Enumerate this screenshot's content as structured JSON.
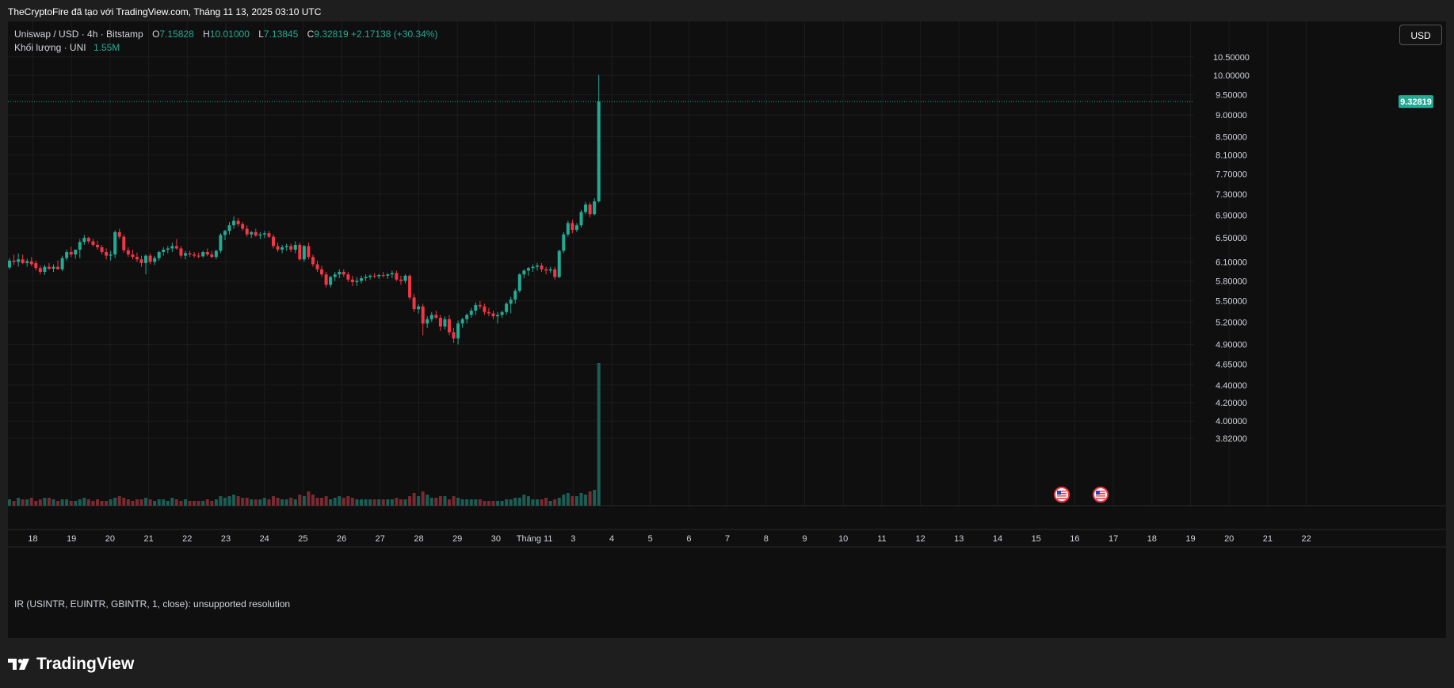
{
  "header": {
    "text": "TheCryptoFire đã tạo với TradingView.com, Tháng 11 13, 2025 03:10 UTC"
  },
  "legend": {
    "symbol": "Uniswap / USD · 4h · Bitstamp",
    "o_label": "O",
    "o_value": "7.15828",
    "h_label": "H",
    "h_value": "10.01000",
    "l_label": "L",
    "l_value": "7.13845",
    "c_label": "C",
    "c_value": "9.32819",
    "change": "+2.17138 (+30.34%)",
    "volume_label": "Khối lượng · UNI",
    "volume_value": "1.55M"
  },
  "currency_button": "USD",
  "indicator_note": "IR (USINTR, EUINTR, GBINTR, 1, close): unsupported resolution",
  "brand": "TradingView",
  "colors": {
    "up": "#22ab94",
    "down": "#f23645",
    "background": "#0f0f0f",
    "grid": "#1c1c1c",
    "text": "#d1d4dc"
  },
  "chart_data": {
    "type": "candlestick",
    "symbol": "Uniswap / USD",
    "interval": "4h",
    "exchange": "Bitstamp",
    "y_scale": "log",
    "y_ticks": [
      "10.50000",
      "10.00000",
      "9.50000",
      "9.00000",
      "8.50000",
      "8.10000",
      "7.70000",
      "7.30000",
      "6.90000",
      "6.50000",
      "6.10000",
      "5.80000",
      "5.50000",
      "5.20000",
      "4.90000",
      "4.65000",
      "4.40000",
      "4.20000",
      "4.00000",
      "3.82000"
    ],
    "x_ticks": [
      "18",
      "19",
      "20",
      "21",
      "22",
      "23",
      "24",
      "25",
      "26",
      "27",
      "28",
      "29",
      "30",
      "Tháng 11",
      "3",
      "4",
      "5",
      "6",
      "7",
      "8",
      "9",
      "10",
      "11",
      "12",
      "13",
      "14",
      "15",
      "16",
      "17",
      "18",
      "19",
      "20",
      "21",
      "22"
    ],
    "last_price": "9.32819",
    "event_icons": [
      "us-flag-icon",
      "us-flag-icon"
    ],
    "ohlc": [
      [
        6.01,
        6.16,
        5.98,
        6.12
      ],
      [
        6.12,
        6.22,
        6.05,
        6.1
      ],
      [
        6.1,
        6.24,
        6.02,
        6.14
      ],
      [
        6.14,
        6.22,
        6.06,
        6.08
      ],
      [
        6.08,
        6.15,
        6.02,
        6.11
      ],
      [
        6.11,
        6.18,
        6.03,
        6.06
      ],
      [
        6.08,
        6.12,
        5.96,
        6.0
      ],
      [
        6.0,
        6.04,
        5.9,
        5.94
      ],
      [
        5.94,
        6.05,
        5.89,
        6.02
      ],
      [
        6.02,
        6.08,
        5.97,
        5.99
      ],
      [
        5.99,
        6.06,
        5.94,
        6.02
      ],
      [
        6.02,
        6.12,
        5.98,
        5.98
      ],
      [
        5.98,
        6.2,
        5.95,
        6.16
      ],
      [
        6.16,
        6.3,
        6.12,
        6.26
      ],
      [
        6.26,
        6.35,
        6.18,
        6.22
      ],
      [
        6.22,
        6.3,
        6.15,
        6.3
      ],
      [
        6.3,
        6.48,
        6.16,
        6.43
      ],
      [
        6.43,
        6.55,
        6.38,
        6.5
      ],
      [
        6.5,
        6.52,
        6.4,
        6.44
      ],
      [
        6.44,
        6.48,
        6.35,
        6.38
      ],
      [
        6.38,
        6.45,
        6.3,
        6.34
      ],
      [
        6.34,
        6.38,
        6.22,
        6.26
      ],
      [
        6.26,
        6.32,
        6.14,
        6.2
      ],
      [
        6.2,
        6.28,
        6.12,
        6.22
      ],
      [
        6.22,
        6.63,
        6.16,
        6.6
      ],
      [
        6.6,
        6.66,
        6.48,
        6.52
      ],
      [
        6.52,
        6.56,
        6.25,
        6.29
      ],
      [
        6.29,
        6.34,
        6.18,
        6.22
      ],
      [
        6.22,
        6.3,
        6.14,
        6.18
      ],
      [
        6.18,
        6.25,
        6.1,
        6.14
      ],
      [
        6.14,
        6.2,
        6.02,
        6.08
      ],
      [
        6.08,
        6.22,
        5.9,
        6.2
      ],
      [
        6.2,
        6.24,
        6.06,
        6.1
      ],
      [
        6.1,
        6.2,
        6.05,
        6.16
      ],
      [
        6.16,
        6.28,
        6.12,
        6.26
      ],
      [
        6.26,
        6.34,
        6.2,
        6.3
      ],
      [
        6.3,
        6.36,
        6.24,
        6.32
      ],
      [
        6.32,
        6.42,
        6.26,
        6.36
      ],
      [
        6.36,
        6.48,
        6.3,
        6.32
      ],
      [
        6.32,
        6.36,
        6.16,
        6.2
      ],
      [
        6.2,
        6.28,
        6.14,
        6.24
      ],
      [
        6.24,
        6.28,
        6.18,
        6.22
      ],
      [
        6.22,
        6.26,
        6.17,
        6.2
      ],
      [
        6.2,
        6.25,
        6.16,
        6.19
      ],
      [
        6.19,
        6.28,
        6.17,
        6.26
      ],
      [
        6.26,
        6.32,
        6.19,
        6.22
      ],
      [
        6.22,
        6.28,
        6.16,
        6.18
      ],
      [
        6.18,
        6.3,
        6.14,
        6.28
      ],
      [
        6.28,
        6.58,
        6.24,
        6.55
      ],
      [
        6.55,
        6.64,
        6.46,
        6.62
      ],
      [
        6.62,
        6.78,
        6.56,
        6.72
      ],
      [
        6.72,
        6.88,
        6.66,
        6.8
      ],
      [
        6.8,
        6.85,
        6.7,
        6.74
      ],
      [
        6.74,
        6.78,
        6.62,
        6.66
      ],
      [
        6.66,
        6.72,
        6.52,
        6.56
      ],
      [
        6.56,
        6.62,
        6.5,
        6.6
      ],
      [
        6.6,
        6.66,
        6.52,
        6.54
      ],
      [
        6.54,
        6.6,
        6.48,
        6.56
      ],
      [
        6.56,
        6.62,
        6.5,
        6.58
      ],
      [
        6.58,
        6.62,
        6.5,
        6.52
      ],
      [
        6.52,
        6.56,
        6.32,
        6.36
      ],
      [
        6.36,
        6.42,
        6.26,
        6.3
      ],
      [
        6.3,
        6.38,
        6.24,
        6.34
      ],
      [
        6.34,
        6.4,
        6.28,
        6.36
      ],
      [
        6.36,
        6.4,
        6.26,
        6.3
      ],
      [
        6.3,
        6.44,
        6.24,
        6.38
      ],
      [
        6.38,
        6.42,
        6.12,
        6.14
      ],
      [
        6.14,
        6.38,
        6.1,
        6.36
      ],
      [
        6.36,
        6.42,
        6.14,
        6.18
      ],
      [
        6.18,
        6.22,
        6.02,
        6.06
      ],
      [
        6.06,
        6.12,
        5.94,
        5.98
      ],
      [
        5.98,
        6.04,
        5.86,
        5.9
      ],
      [
        5.9,
        5.94,
        5.7,
        5.74
      ],
      [
        5.74,
        5.88,
        5.7,
        5.86
      ],
      [
        5.86,
        5.94,
        5.8,
        5.9
      ],
      [
        5.9,
        5.98,
        5.84,
        5.94
      ],
      [
        5.94,
        5.98,
        5.86,
        5.9
      ],
      [
        5.9,
        5.94,
        5.78,
        5.82
      ],
      [
        5.82,
        5.88,
        5.72,
        5.78
      ],
      [
        5.78,
        5.86,
        5.72,
        5.8
      ],
      [
        5.8,
        5.88,
        5.76,
        5.84
      ],
      [
        5.84,
        5.9,
        5.8,
        5.86
      ],
      [
        5.86,
        5.9,
        5.82,
        5.88
      ],
      [
        5.88,
        5.92,
        5.84,
        5.87
      ],
      [
        5.87,
        5.91,
        5.83,
        5.89
      ],
      [
        5.89,
        5.94,
        5.85,
        5.88
      ],
      [
        5.88,
        5.92,
        5.83,
        5.9
      ],
      [
        5.9,
        5.96,
        5.84,
        5.92
      ],
      [
        5.92,
        5.96,
        5.8,
        5.82
      ],
      [
        5.82,
        5.88,
        5.74,
        5.8
      ],
      [
        5.8,
        5.9,
        5.76,
        5.88
      ],
      [
        5.88,
        5.9,
        5.52,
        5.55
      ],
      [
        5.55,
        5.6,
        5.34,
        5.38
      ],
      [
        5.38,
        5.45,
        5.32,
        5.42
      ],
      [
        5.42,
        5.46,
        5.02,
        5.18
      ],
      [
        5.18,
        5.28,
        5.12,
        5.24
      ],
      [
        5.24,
        5.34,
        5.2,
        5.3
      ],
      [
        5.3,
        5.36,
        5.24,
        5.26
      ],
      [
        5.26,
        5.3,
        5.08,
        5.14
      ],
      [
        5.14,
        5.28,
        5.1,
        5.24
      ],
      [
        5.24,
        5.3,
        5.02,
        5.06
      ],
      [
        5.06,
        5.12,
        4.92,
        4.98
      ],
      [
        4.98,
        5.22,
        4.9,
        5.18
      ],
      [
        5.18,
        5.26,
        5.12,
        5.24
      ],
      [
        5.24,
        5.32,
        5.18,
        5.3
      ],
      [
        5.3,
        5.4,
        5.26,
        5.36
      ],
      [
        5.36,
        5.48,
        5.3,
        5.44
      ],
      [
        5.44,
        5.5,
        5.38,
        5.42
      ],
      [
        5.42,
        5.46,
        5.3,
        5.34
      ],
      [
        5.34,
        5.4,
        5.28,
        5.32
      ],
      [
        5.32,
        5.36,
        5.24,
        5.28
      ],
      [
        5.28,
        5.34,
        5.18,
        5.3
      ],
      [
        5.3,
        5.36,
        5.26,
        5.34
      ],
      [
        5.34,
        5.48,
        5.3,
        5.46
      ],
      [
        5.46,
        5.56,
        5.32,
        5.52
      ],
      [
        5.52,
        5.68,
        5.46,
        5.65
      ],
      [
        5.65,
        5.92,
        5.62,
        5.9
      ],
      [
        5.9,
        5.98,
        5.84,
        5.96
      ],
      [
        5.96,
        6.02,
        5.88,
        6.0
      ],
      [
        6.0,
        6.06,
        5.94,
        6.02
      ],
      [
        6.02,
        6.08,
        5.96,
        6.04
      ],
      [
        6.04,
        6.08,
        5.94,
        5.98
      ],
      [
        5.98,
        6.02,
        5.9,
        5.96
      ],
      [
        5.96,
        6.02,
        5.92,
        5.98
      ],
      [
        5.98,
        6.02,
        5.82,
        5.86
      ],
      [
        5.86,
        6.3,
        5.84,
        6.28
      ],
      [
        6.28,
        6.6,
        6.24,
        6.56
      ],
      [
        6.56,
        6.8,
        6.52,
        6.76
      ],
      [
        6.76,
        6.82,
        6.58,
        6.64
      ],
      [
        6.64,
        6.76,
        6.6,
        6.72
      ],
      [
        6.72,
        7.0,
        6.68,
        6.96
      ],
      [
        6.96,
        7.15,
        6.92,
        7.1
      ],
      [
        7.1,
        7.14,
        6.86,
        6.92
      ],
      [
        6.92,
        7.22,
        6.9,
        7.16
      ],
      [
        7.16,
        10.01,
        7.14,
        9.33
      ]
    ],
    "volume": [
      4,
      3,
      5,
      4,
      4,
      5,
      3,
      4,
      5,
      5,
      4,
      3,
      4,
      4,
      3,
      3,
      4,
      5,
      4,
      3,
      4,
      3,
      3,
      4,
      5,
      6,
      5,
      4,
      3,
      4,
      4,
      5,
      4,
      3,
      4,
      4,
      3,
      5,
      4,
      3,
      4,
      3,
      3,
      3,
      3,
      4,
      3,
      4,
      6,
      5,
      6,
      7,
      6,
      5,
      5,
      4,
      4,
      4,
      5,
      4,
      6,
      5,
      4,
      4,
      5,
      4,
      7,
      6,
      9,
      7,
      5,
      5,
      6,
      4,
      5,
      6,
      5,
      6,
      5,
      4,
      4,
      4,
      4,
      4,
      4,
      4,
      4,
      4,
      5,
      4,
      4,
      6,
      8,
      6,
      9,
      7,
      5,
      5,
      6,
      6,
      4,
      6,
      5,
      4,
      4,
      4,
      4,
      4,
      3,
      3,
      3,
      3,
      3,
      4,
      4,
      5,
      5,
      7,
      6,
      4,
      4,
      4,
      5,
      3,
      4,
      5,
      7,
      8,
      6,
      6,
      8,
      7,
      9,
      10,
      90
    ]
  }
}
